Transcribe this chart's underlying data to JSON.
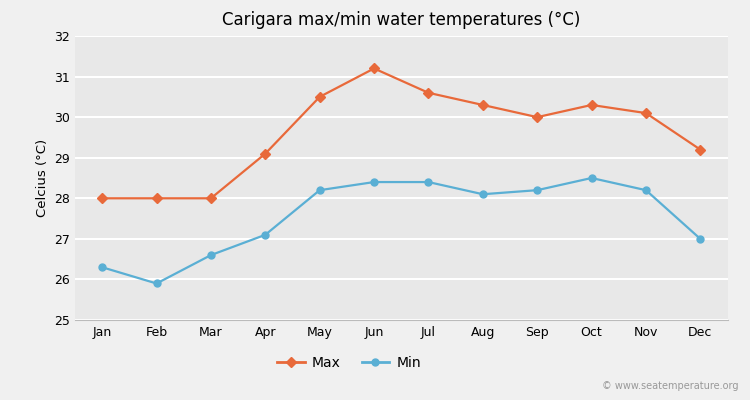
{
  "title": "Carigara max/min water temperatures (°C)",
  "ylabel": "Celcius (°C)",
  "months": [
    "Jan",
    "Feb",
    "Mar",
    "Apr",
    "May",
    "Jun",
    "Jul",
    "Aug",
    "Sep",
    "Oct",
    "Nov",
    "Dec"
  ],
  "max_temps": [
    28.0,
    28.0,
    28.0,
    29.1,
    30.5,
    31.2,
    30.6,
    30.3,
    30.0,
    30.3,
    30.1,
    29.2
  ],
  "min_temps": [
    26.3,
    25.9,
    26.6,
    27.1,
    28.2,
    28.4,
    28.4,
    28.1,
    28.2,
    28.5,
    28.2,
    27.0
  ],
  "max_color": "#E8693A",
  "min_color": "#5AAFD4",
  "bg_color": "#f0f0f0",
  "plot_bg_color": "#e8e8e8",
  "ylim": [
    25,
    32
  ],
  "yticks": [
    25,
    26,
    27,
    28,
    29,
    30,
    31,
    32
  ],
  "watermark": "© www.seatemperature.org",
  "legend_max": "Max",
  "legend_min": "Min"
}
